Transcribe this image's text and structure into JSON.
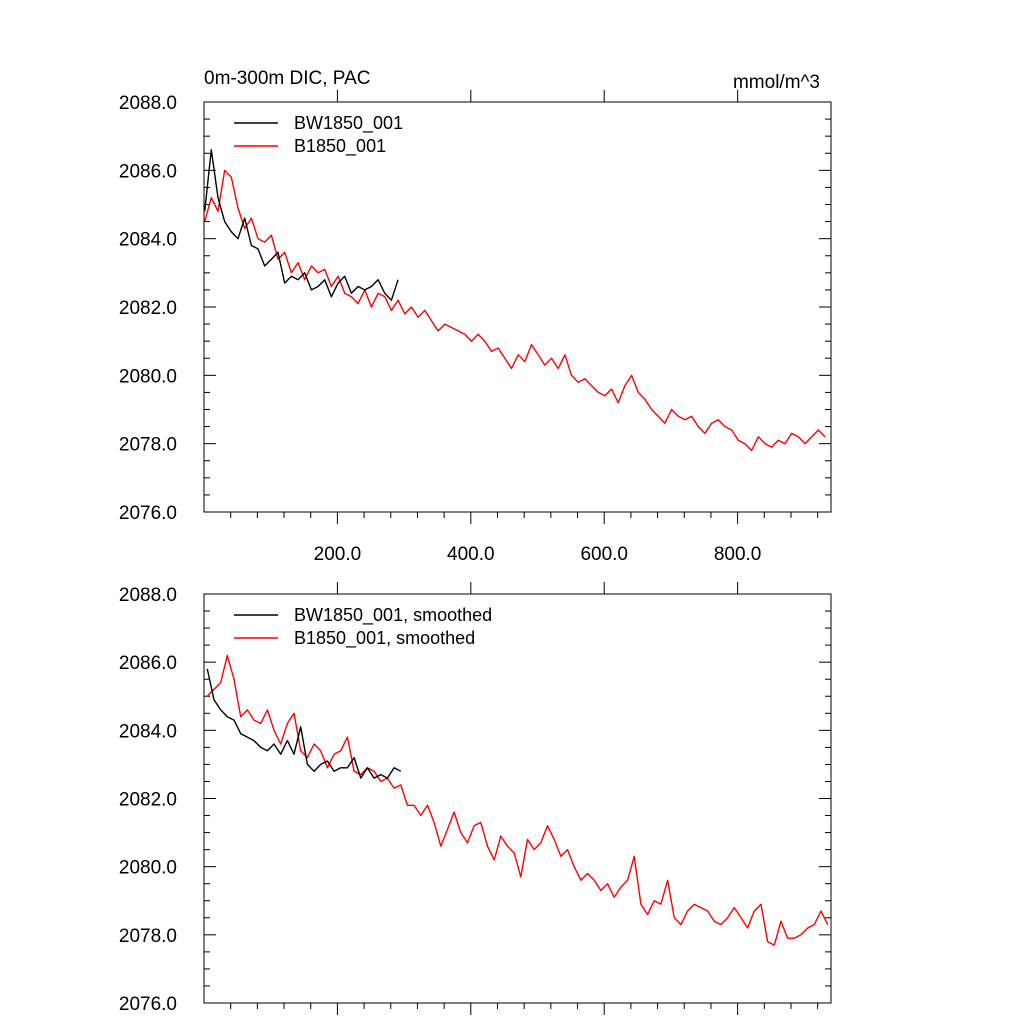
{
  "figure": {
    "title_left": "0m-300m DIC, PAC",
    "title_right": "mmol/m^3"
  },
  "chart_data": [
    {
      "type": "line",
      "xlim": [
        0,
        940
      ],
      "ylim": [
        2076.0,
        2088.0
      ],
      "yticks": [
        "2076.0",
        "2078.0",
        "2080.0",
        "2082.0",
        "2084.0",
        "2086.0",
        "2088.0"
      ],
      "xticks": [
        "200.0",
        "400.0",
        "600.0",
        "800.0"
      ],
      "legend_position": "top-left",
      "series": [
        {
          "name": "BW1850_001",
          "color": "#000000",
          "x_start": 1,
          "x_step": 10,
          "values": [
            2084.8,
            2086.6,
            2085.2,
            2084.5,
            2084.2,
            2084.0,
            2084.6,
            2083.8,
            2083.7,
            2083.2,
            2083.4,
            2083.6,
            2082.7,
            2082.9,
            2082.8,
            2083.0,
            2082.5,
            2082.6,
            2082.8,
            2082.3,
            2082.7,
            2082.9,
            2082.4,
            2082.6,
            2082.5,
            2082.6,
            2082.8,
            2082.4,
            2082.2,
            2082.8
          ]
        },
        {
          "name": "B1850_001",
          "color": "#ff0000",
          "x_start": 1,
          "x_step": 10,
          "values": [
            2084.5,
            2085.2,
            2084.8,
            2086.0,
            2085.8,
            2084.9,
            2084.3,
            2084.6,
            2084.0,
            2083.9,
            2084.1,
            2083.4,
            2083.6,
            2083.0,
            2083.3,
            2082.8,
            2083.2,
            2083.0,
            2083.1,
            2082.6,
            2082.9,
            2082.4,
            2082.3,
            2082.1,
            2082.5,
            2082.0,
            2082.4,
            2082.3,
            2081.9,
            2082.2,
            2081.8,
            2082.0,
            2081.7,
            2081.9,
            2081.6,
            2081.3,
            2081.5,
            2081.4,
            2081.3,
            2081.2,
            2081.0,
            2081.2,
            2081.0,
            2080.7,
            2080.8,
            2080.5,
            2080.2,
            2080.6,
            2080.4,
            2080.9,
            2080.6,
            2080.3,
            2080.5,
            2080.2,
            2080.6,
            2080.0,
            2079.8,
            2079.9,
            2079.7,
            2079.5,
            2079.4,
            2079.6,
            2079.2,
            2079.7,
            2080.0,
            2079.5,
            2079.3,
            2079.0,
            2078.8,
            2078.6,
            2079.0,
            2078.8,
            2078.7,
            2078.8,
            2078.5,
            2078.3,
            2078.6,
            2078.7,
            2078.5,
            2078.4,
            2078.1,
            2078.0,
            2077.8,
            2078.2,
            2078.0,
            2077.9,
            2078.1,
            2078.0,
            2078.3,
            2078.2,
            2078.0,
            2078.2,
            2078.4,
            2078.2
          ]
        }
      ]
    },
    {
      "type": "line",
      "xlim": [
        0,
        940
      ],
      "ylim": [
        2076.0,
        2088.0
      ],
      "yticks": [
        "2076.0",
        "2078.0",
        "2080.0",
        "2082.0",
        "2084.0",
        "2086.0",
        "2088.0"
      ],
      "legend_position": "top-left",
      "series": [
        {
          "name": "BW1850_001, smoothed",
          "color": "#000000",
          "x_start": 5,
          "x_step": 10,
          "values": [
            2085.8,
            2084.9,
            2084.6,
            2084.4,
            2084.3,
            2083.9,
            2083.8,
            2083.7,
            2083.5,
            2083.4,
            2083.6,
            2083.3,
            2083.7,
            2083.3,
            2084.1,
            2083.0,
            2082.8,
            2083.0,
            2083.1,
            2082.8,
            2082.9,
            2082.9,
            2083.2,
            2082.6,
            2082.9,
            2082.6,
            2082.7,
            2082.6,
            2082.9,
            2082.8
          ]
        },
        {
          "name": "B1850_001, smoothed",
          "color": "#ff0000",
          "x_start": 5,
          "x_step": 10,
          "values": [
            2085.0,
            2085.2,
            2085.4,
            2086.2,
            2085.5,
            2084.4,
            2084.6,
            2084.3,
            2084.2,
            2084.6,
            2084.0,
            2083.6,
            2084.2,
            2084.5,
            2083.4,
            2083.2,
            2083.6,
            2083.4,
            2082.9,
            2083.3,
            2083.4,
            2083.8,
            2082.8,
            2082.7,
            2082.9,
            2082.8,
            2082.5,
            2082.6,
            2082.3,
            2082.4,
            2081.8,
            2081.8,
            2081.5,
            2081.8,
            2081.3,
            2080.6,
            2081.1,
            2081.6,
            2081.0,
            2080.7,
            2081.2,
            2081.3,
            2080.6,
            2080.2,
            2080.9,
            2080.6,
            2080.4,
            2079.7,
            2080.8,
            2080.5,
            2080.7,
            2081.2,
            2080.8,
            2080.3,
            2080.5,
            2080.0,
            2079.6,
            2079.8,
            2079.6,
            2079.3,
            2079.5,
            2079.1,
            2079.4,
            2079.6,
            2080.3,
            2078.9,
            2078.6,
            2079.0,
            2078.9,
            2079.6,
            2078.5,
            2078.3,
            2078.7,
            2078.9,
            2078.8,
            2078.7,
            2078.4,
            2078.3,
            2078.5,
            2078.8,
            2078.5,
            2078.2,
            2078.7,
            2078.9,
            2077.8,
            2077.7,
            2078.4,
            2077.9,
            2077.9,
            2078.0,
            2078.2,
            2078.3,
            2078.7,
            2078.3
          ]
        }
      ]
    }
  ]
}
